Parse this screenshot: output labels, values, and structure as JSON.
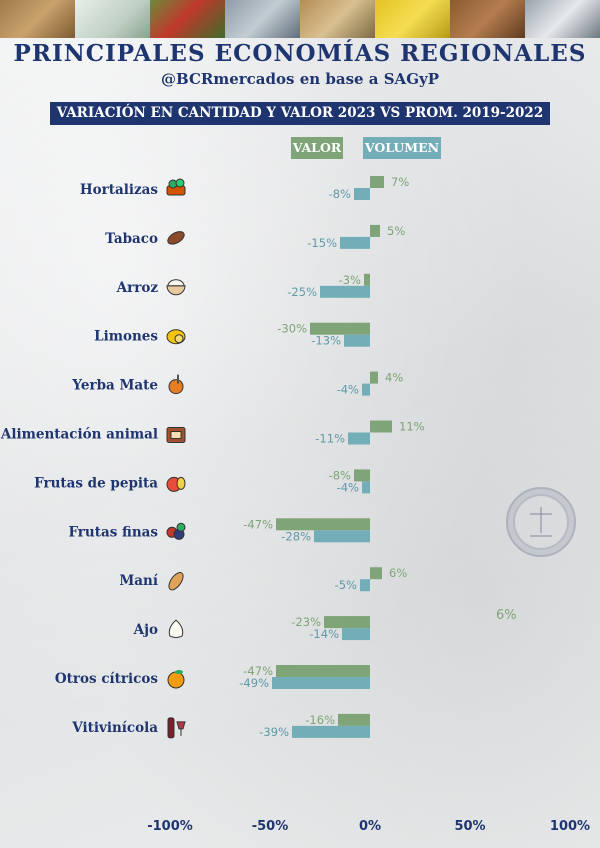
{
  "header": {
    "title": "PRINCIPALES ECONOMÍAS REGIONALES",
    "subtitle": "@BCRmercados en base a SAGyP",
    "banner": "VARIACIÓN EN CANTIDAD Y VALOR 2023 VS PROM. 2019-2022"
  },
  "colors": {
    "valor": "#7ea477",
    "volumen": "#73aeb8",
    "navy": "#1f3570",
    "valor_text": "#7ea477",
    "volumen_text": "#5f9aa6"
  },
  "stray_note": "6%",
  "chart_data": {
    "type": "bar",
    "orientation": "horizontal",
    "categories": [
      "Hortalizas",
      "Tabaco",
      "Arroz",
      "Limones",
      "Yerba Mate",
      "Alimentación animal",
      "Frutas de pepita",
      "Frutas finas",
      "Maní",
      "Ajo",
      "Otros cítricos",
      "Vitivinícola"
    ],
    "category_icons": [
      "vegetables-icon",
      "tobacco-leaf-icon",
      "rice-bowl-icon",
      "lemon-icon",
      "mate-gourd-icon",
      "animal-feed-icon",
      "apple-pear-icon",
      "berries-icon",
      "peanut-icon",
      "garlic-icon",
      "orange-icon",
      "wine-icon"
    ],
    "series": [
      {
        "name": "VALOR",
        "values": [
          7,
          5,
          -3,
          -30,
          4,
          11,
          -8,
          -47,
          6,
          -23,
          -47,
          -16
        ]
      },
      {
        "name": "VOLUMEN",
        "values": [
          -8,
          -15,
          -25,
          -13,
          -4,
          -11,
          -4,
          -28,
          -5,
          -14,
          -49,
          -39
        ]
      }
    ],
    "data_labels": {
      "VALOR": [
        "7%",
        "5%",
        "-3%",
        "-30%",
        "4%",
        "11%",
        "-8%",
        "-47%",
        "6%",
        "-23%",
        "-47%",
        "-16%"
      ],
      "VOLUMEN": [
        "-8%",
        "-15%",
        "-25%",
        "-13%",
        "-4%",
        "-11%",
        "-4%",
        "-28%",
        "-5%",
        "-14%",
        "-49%",
        "-39%"
      ]
    },
    "xlim": [
      -100,
      100
    ],
    "xticks": [
      -100,
      -50,
      0,
      50,
      100
    ],
    "xtick_labels": [
      "-100%",
      "-50%",
      "0%",
      "50%",
      "100%"
    ],
    "legend": "top",
    "grid": false
  }
}
